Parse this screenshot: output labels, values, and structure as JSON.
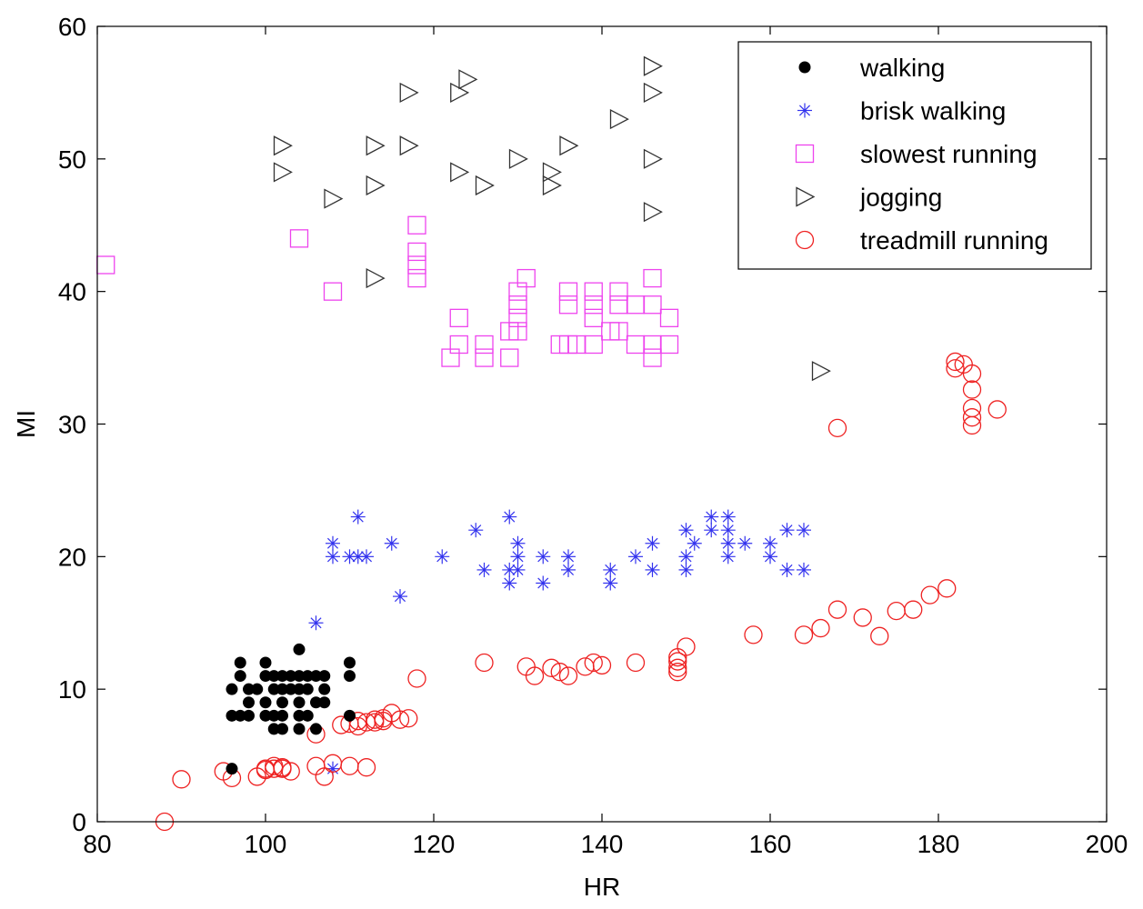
{
  "chart_data": {
    "type": "scatter",
    "title": "",
    "xlabel": "HR",
    "ylabel": "MI",
    "xlim": [
      80,
      200
    ],
    "ylim": [
      0,
      60
    ],
    "xticks": [
      80,
      100,
      120,
      140,
      160,
      180,
      200
    ],
    "yticks": [
      0,
      10,
      20,
      30,
      40,
      50,
      60
    ],
    "legend_position": "top-right",
    "series": [
      {
        "name": "walking",
        "marker": "filled-circle",
        "color": "#000000",
        "points": [
          [
            96,
            8
          ],
          [
            96,
            10
          ],
          [
            96,
            4
          ],
          [
            97,
            8
          ],
          [
            97,
            11
          ],
          [
            97,
            12
          ],
          [
            98,
            8
          ],
          [
            98,
            9
          ],
          [
            98,
            10
          ],
          [
            99,
            10
          ],
          [
            100,
            8
          ],
          [
            100,
            9
          ],
          [
            100,
            11
          ],
          [
            100,
            12
          ],
          [
            101,
            7
          ],
          [
            101,
            8
          ],
          [
            101,
            10
          ],
          [
            101,
            11
          ],
          [
            102,
            7
          ],
          [
            102,
            8
          ],
          [
            102,
            9
          ],
          [
            102,
            10
          ],
          [
            102,
            11
          ],
          [
            103,
            10
          ],
          [
            103,
            11
          ],
          [
            104,
            7
          ],
          [
            104,
            8
          ],
          [
            104,
            9
          ],
          [
            104,
            10
          ],
          [
            104,
            11
          ],
          [
            104,
            13
          ],
          [
            105,
            8
          ],
          [
            105,
            10
          ],
          [
            105,
            11
          ],
          [
            106,
            9
          ],
          [
            106,
            11
          ],
          [
            106,
            7
          ],
          [
            107,
            9
          ],
          [
            107,
            10
          ],
          [
            107,
            11
          ],
          [
            110,
            8
          ],
          [
            110,
            11
          ],
          [
            110,
            12
          ]
        ]
      },
      {
        "name": "brisk walking",
        "marker": "asterisk",
        "color": "#3333ee",
        "points": [
          [
            106,
            15
          ],
          [
            108,
            21
          ],
          [
            108,
            20
          ],
          [
            108,
            4
          ],
          [
            110,
            20
          ],
          [
            111,
            20
          ],
          [
            111,
            23
          ],
          [
            112,
            20
          ],
          [
            115,
            21
          ],
          [
            116,
            17
          ],
          [
            121,
            20
          ],
          [
            125,
            22
          ],
          [
            126,
            19
          ],
          [
            129,
            23
          ],
          [
            129,
            19
          ],
          [
            129,
            18
          ],
          [
            130,
            19
          ],
          [
            130,
            20
          ],
          [
            130,
            21
          ],
          [
            133,
            20
          ],
          [
            133,
            18
          ],
          [
            136,
            20
          ],
          [
            136,
            19
          ],
          [
            141,
            19
          ],
          [
            141,
            18
          ],
          [
            144,
            20
          ],
          [
            146,
            21
          ],
          [
            146,
            19
          ],
          [
            150,
            22
          ],
          [
            150,
            20
          ],
          [
            150,
            19
          ],
          [
            151,
            21
          ],
          [
            153,
            23
          ],
          [
            153,
            22
          ],
          [
            155,
            23
          ],
          [
            155,
            22
          ],
          [
            155,
            21
          ],
          [
            155,
            20
          ],
          [
            157,
            21
          ],
          [
            160,
            21
          ],
          [
            160,
            20
          ],
          [
            162,
            22
          ],
          [
            162,
            19
          ],
          [
            164,
            22
          ],
          [
            164,
            19
          ]
        ]
      },
      {
        "name": "slowest running",
        "marker": "square",
        "color": "#ee44ee",
        "points": [
          [
            81,
            42
          ],
          [
            104,
            44
          ],
          [
            108,
            40
          ],
          [
            118,
            45
          ],
          [
            118,
            43
          ],
          [
            118,
            42
          ],
          [
            118,
            41
          ],
          [
            122,
            35
          ],
          [
            123,
            38
          ],
          [
            123,
            36
          ],
          [
            126,
            36
          ],
          [
            126,
            35
          ],
          [
            129,
            37
          ],
          [
            129,
            35
          ],
          [
            130,
            40
          ],
          [
            130,
            39
          ],
          [
            130,
            38
          ],
          [
            130,
            37
          ],
          [
            131,
            41
          ],
          [
            135,
            36
          ],
          [
            136,
            40
          ],
          [
            136,
            39
          ],
          [
            136,
            36
          ],
          [
            137,
            36
          ],
          [
            139,
            40
          ],
          [
            139,
            39
          ],
          [
            139,
            38
          ],
          [
            139,
            36
          ],
          [
            141,
            37
          ],
          [
            142,
            40
          ],
          [
            142,
            39
          ],
          [
            142,
            37
          ],
          [
            144,
            39
          ],
          [
            144,
            36
          ],
          [
            146,
            41
          ],
          [
            146,
            39
          ],
          [
            146,
            36
          ],
          [
            146,
            35
          ],
          [
            148,
            38
          ],
          [
            148,
            36
          ]
        ]
      },
      {
        "name": "jogging",
        "marker": "triangle-right",
        "color": "#333333",
        "points": [
          [
            102,
            51
          ],
          [
            102,
            49
          ],
          [
            108,
            47
          ],
          [
            113,
            51
          ],
          [
            113,
            48
          ],
          [
            113,
            41
          ],
          [
            117,
            55
          ],
          [
            117,
            51
          ],
          [
            123,
            55
          ],
          [
            123,
            49
          ],
          [
            124,
            56
          ],
          [
            126,
            48
          ],
          [
            130,
            50
          ],
          [
            134,
            49
          ],
          [
            134,
            48
          ],
          [
            136,
            51
          ],
          [
            142,
            53
          ],
          [
            146,
            57
          ],
          [
            146,
            55
          ],
          [
            146,
            50
          ],
          [
            146,
            46
          ],
          [
            166,
            34
          ]
        ]
      },
      {
        "name": "treadmill running",
        "marker": "circle",
        "color": "#ee2222",
        "points": [
          [
            88,
            0
          ],
          [
            90,
            3.2
          ],
          [
            95,
            3.8
          ],
          [
            96,
            3.3
          ],
          [
            99,
            3.4
          ],
          [
            100,
            4
          ],
          [
            100,
            3.9
          ],
          [
            101,
            4
          ],
          [
            101,
            4.2
          ],
          [
            102,
            4.1
          ],
          [
            102,
            4
          ],
          [
            103,
            3.8
          ],
          [
            106,
            4.2
          ],
          [
            106,
            6.6
          ],
          [
            107,
            3.4
          ],
          [
            108,
            4.4
          ],
          [
            109,
            7.3
          ],
          [
            110,
            4.2
          ],
          [
            110,
            7.4
          ],
          [
            111,
            7.2
          ],
          [
            111,
            7.6
          ],
          [
            112,
            7.5
          ],
          [
            112,
            4.1
          ],
          [
            113,
            7.5
          ],
          [
            113,
            7.7
          ],
          [
            114,
            7.6
          ],
          [
            114,
            7.8
          ],
          [
            115,
            8.2
          ],
          [
            116,
            7.7
          ],
          [
            117,
            7.8
          ],
          [
            118,
            10.8
          ],
          [
            126,
            12
          ],
          [
            131,
            11.7
          ],
          [
            132,
            11
          ],
          [
            134,
            11.6
          ],
          [
            135,
            11.3
          ],
          [
            136,
            11
          ],
          [
            138,
            11.7
          ],
          [
            139,
            12
          ],
          [
            140,
            11.8
          ],
          [
            144,
            12
          ],
          [
            149,
            11.3
          ],
          [
            149,
            11.6
          ],
          [
            149,
            12.1
          ],
          [
            149,
            12.4
          ],
          [
            150,
            13.2
          ],
          [
            158,
            14.1
          ],
          [
            164,
            14.1
          ],
          [
            166,
            14.6
          ],
          [
            168,
            29.7
          ],
          [
            168,
            16
          ],
          [
            171,
            15.4
          ],
          [
            173,
            14
          ],
          [
            175,
            15.9
          ],
          [
            177,
            16
          ],
          [
            179,
            17.1
          ],
          [
            181,
            17.6
          ],
          [
            182,
            34.7
          ],
          [
            182,
            34.2
          ],
          [
            183,
            34.5
          ],
          [
            184,
            33.8
          ],
          [
            184,
            32.6
          ],
          [
            184,
            31.2
          ],
          [
            184,
            30.5
          ],
          [
            184,
            29.9
          ],
          [
            187,
            31.1
          ]
        ]
      }
    ]
  }
}
